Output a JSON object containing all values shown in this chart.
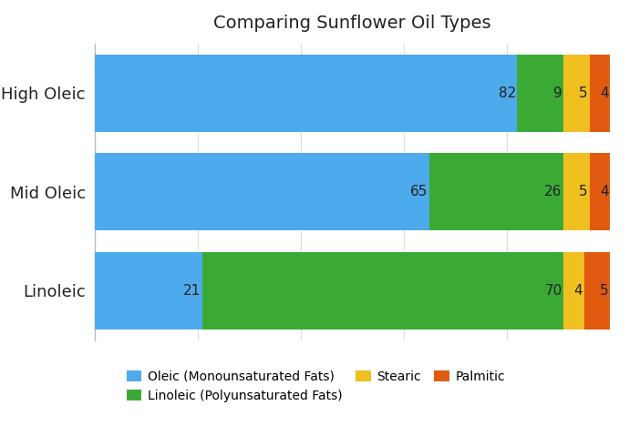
{
  "title": "Comparing Sunflower Oil Types",
  "categories": [
    "High Oleic",
    "Mid Oleic",
    "Linoleic"
  ],
  "series": [
    {
      "name": "Oleic (Monounsaturated Fats)",
      "color": "#4DAAEC",
      "values": [
        82,
        65,
        21
      ]
    },
    {
      "name": "Linoleic (Polyunsaturated Fats)",
      "color": "#3AAA35",
      "values": [
        9,
        26,
        70
      ]
    },
    {
      "name": "Stearic",
      "color": "#F0C020",
      "values": [
        5,
        5,
        4
      ]
    },
    {
      "name": "Palmitic",
      "color": "#E05A10",
      "values": [
        4,
        4,
        5
      ]
    }
  ],
  "title_fontsize": 14,
  "label_fontsize": 11,
  "bar_height": 0.78,
  "background_color": "#ffffff",
  "grid_color": "#dddddd",
  "text_color": "#222222",
  "yticklabel_fontsize": 13,
  "legend_fontsize": 10,
  "xlim": [
    0,
    100
  ]
}
